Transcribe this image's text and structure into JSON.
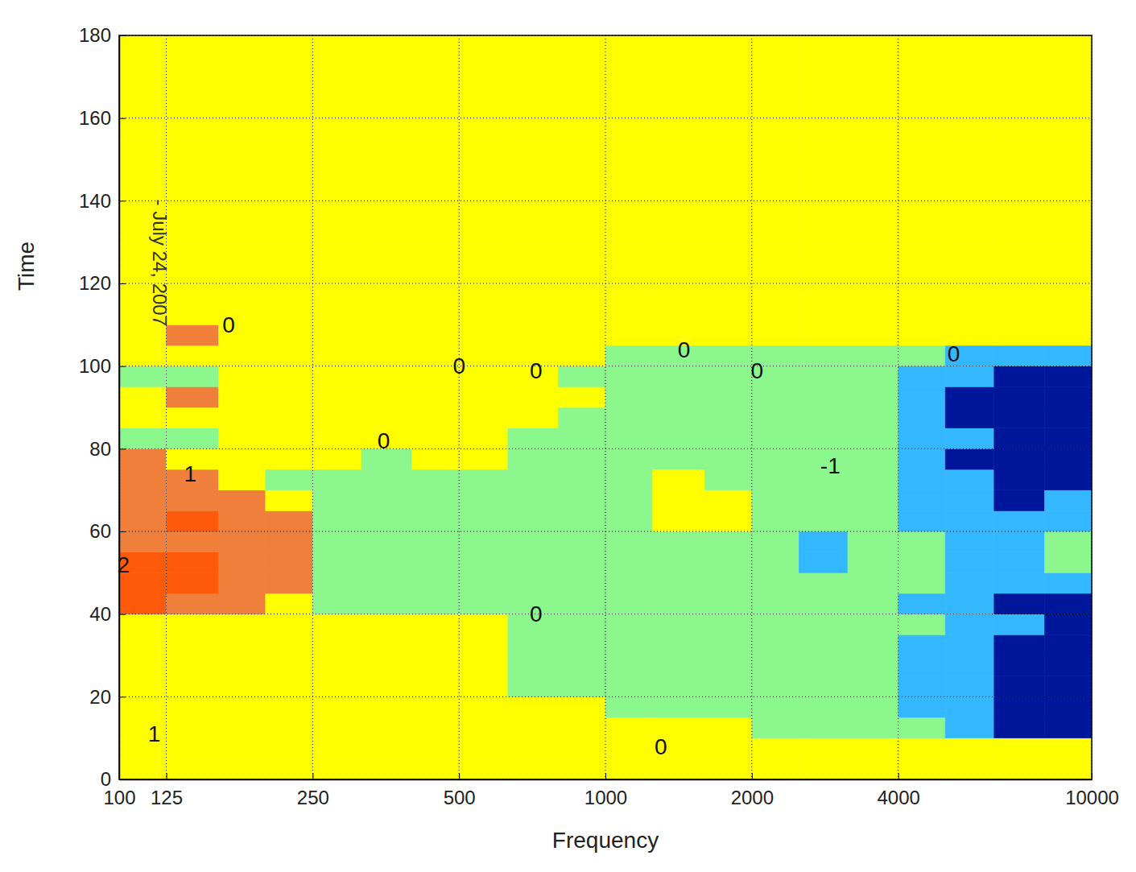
{
  "chart_data": {
    "type": "heatmap",
    "x_label": "Frequency",
    "y_label": "Time",
    "log": "x",
    "grid": true,
    "xlim": [
      100,
      10000
    ],
    "ylim": [
      0,
      180
    ],
    "xticks": [
      100,
      125,
      250,
      500,
      1000,
      2000,
      4000,
      10000
    ],
    "yticks": [
      0,
      20,
      40,
      60,
      80,
      100,
      120,
      140,
      160,
      180
    ],
    "x_bins": [
      100,
      125,
      160,
      200,
      250,
      315,
      400,
      500,
      630,
      800,
      1000,
      1250,
      1600,
      2000,
      2500,
      3150,
      4000,
      5000,
      6300,
      8000,
      10000
    ],
    "y_bins": [
      0,
      5,
      10,
      15,
      20,
      25,
      30,
      35,
      40,
      45,
      50,
      55,
      60,
      65,
      70,
      75,
      80,
      85,
      90,
      95,
      100,
      105,
      110,
      115,
      120,
      125,
      130,
      135,
      140,
      145,
      150,
      155,
      160,
      165,
      170,
      175,
      180
    ],
    "zlim": [
      -3,
      2
    ],
    "z": [
      [
        0,
        0,
        0,
        0,
        0,
        0,
        0,
        0,
        0,
        0,
        0,
        0,
        0,
        0,
        0,
        0,
        0,
        0,
        0,
        0
      ],
      [
        0,
        0,
        0,
        0,
        0,
        0,
        0,
        0,
        0,
        0,
        0,
        0,
        0,
        0,
        0,
        0,
        0,
        0,
        0,
        0
      ],
      [
        0,
        0,
        0,
        0,
        0,
        0,
        0,
        0,
        0,
        0,
        0,
        0,
        0,
        -1,
        -1,
        -1,
        -1,
        -2,
        -3,
        -3
      ],
      [
        0,
        0,
        0,
        0,
        0,
        0,
        0,
        0,
        0,
        0,
        -1,
        -1,
        -1,
        -1,
        -1,
        -1,
        -2,
        -2,
        -3,
        -3
      ],
      [
        0,
        0,
        0,
        0,
        0,
        0,
        0,
        0,
        -1,
        -1,
        -1,
        -1,
        -1,
        -1,
        -1,
        -1,
        -2,
        -2,
        -3,
        -3
      ],
      [
        0,
        0,
        0,
        0,
        0,
        0,
        0,
        0,
        -1,
        -1,
        -1,
        -1,
        -1,
        -1,
        -1,
        -1,
        -2,
        -2,
        -3,
        -3
      ],
      [
        0,
        0,
        0,
        0,
        0,
        0,
        0,
        0,
        -1,
        -1,
        -1,
        -1,
        -1,
        -1,
        -1,
        -1,
        -2,
        -2,
        -3,
        -3
      ],
      [
        0,
        0,
        0,
        0,
        0,
        0,
        0,
        0,
        -1,
        -1,
        -1,
        -1,
        -1,
        -1,
        -1,
        -1,
        -1,
        -2,
        -2,
        -3
      ],
      [
        2,
        1,
        1,
        0,
        -1,
        -1,
        -1,
        -1,
        -1,
        -1,
        -1,
        -1,
        -1,
        -1,
        -1,
        -1,
        -2,
        -2,
        -3,
        -3
      ],
      [
        2,
        2,
        1,
        1,
        -1,
        -1,
        -1,
        -1,
        -1,
        -1,
        -1,
        -1,
        -1,
        -1,
        -1,
        -1,
        -1,
        -2,
        -2,
        -2
      ],
      [
        2,
        2,
        1,
        1,
        -1,
        -1,
        -1,
        -1,
        -1,
        -1,
        -1,
        -1,
        -1,
        -1,
        -2,
        -1,
        -1,
        -2,
        -2,
        -1
      ],
      [
        1,
        1,
        1,
        1,
        -1,
        -1,
        -1,
        -1,
        -1,
        -1,
        -1,
        -1,
        -1,
        -1,
        -2,
        -1,
        -1,
        -2,
        -2,
        -1
      ],
      [
        1,
        2,
        1,
        1,
        -1,
        -1,
        -1,
        -1,
        -1,
        -1,
        -1,
        0,
        0,
        -1,
        -1,
        -1,
        -2,
        -2,
        -2,
        -2
      ],
      [
        1,
        1,
        1,
        0,
        -1,
        -1,
        -1,
        -1,
        -1,
        -1,
        -1,
        0,
        0,
        -1,
        -1,
        -1,
        -2,
        -2,
        -3,
        -2
      ],
      [
        1,
        1,
        0,
        -1,
        -1,
        -1,
        -1,
        -1,
        -1,
        -1,
        -1,
        0,
        -1,
        -1,
        -1,
        -1,
        -2,
        -2,
        -3,
        -3
      ],
      [
        1,
        0,
        0,
        0,
        0,
        -1,
        0,
        0,
        -1,
        -1,
        -1,
        -1,
        -1,
        -1,
        -1,
        -1,
        -2,
        -3,
        -3,
        -3
      ],
      [
        -1,
        -1,
        0,
        0,
        0,
        0,
        0,
        0,
        -1,
        -1,
        -1,
        -1,
        -1,
        -1,
        -1,
        -1,
        -2,
        -2,
        -3,
        -3
      ],
      [
        0,
        0,
        0,
        0,
        0,
        0,
        0,
        0,
        0,
        -1,
        -1,
        -1,
        -1,
        -1,
        -1,
        -1,
        -2,
        -3,
        -3,
        -3
      ],
      [
        0,
        1,
        0,
        0,
        0,
        0,
        0,
        0,
        0,
        0,
        -1,
        -1,
        -1,
        -1,
        -1,
        -1,
        -2,
        -3,
        -3,
        -3
      ],
      [
        -1,
        -1,
        0,
        0,
        0,
        0,
        0,
        0,
        0,
        -1,
        -1,
        -1,
        -1,
        -1,
        -1,
        -1,
        -2,
        -2,
        -3,
        -3
      ],
      [
        0,
        0,
        0,
        0,
        0,
        0,
        0,
        0,
        0,
        0,
        -1,
        -1,
        -1,
        -1,
        -1,
        -1,
        -1,
        -2,
        -2,
        -2
      ],
      [
        0,
        1,
        0,
        0,
        0,
        0,
        0,
        0,
        0,
        0,
        0,
        0,
        0,
        0,
        0,
        0,
        0,
        0,
        0,
        0
      ],
      [
        0,
        0,
        0,
        0,
        0,
        0,
        0,
        0,
        0,
        0,
        0,
        0,
        0,
        0,
        0,
        0,
        0,
        0,
        0,
        0
      ],
      [
        0,
        0,
        0,
        0,
        0,
        0,
        0,
        0,
        0,
        0,
        0,
        0,
        0,
        0,
        0,
        0,
        0,
        0,
        0,
        0
      ],
      [
        0,
        0,
        0,
        0,
        0,
        0,
        0,
        0,
        0,
        0,
        0,
        0,
        0,
        0,
        0,
        0,
        0,
        0,
        0,
        0
      ],
      [
        0,
        0,
        0,
        0,
        0,
        0,
        0,
        0,
        0,
        0,
        0,
        0,
        0,
        0,
        0,
        0,
        0,
        0,
        0,
        0
      ],
      [
        0,
        0,
        0,
        0,
        0,
        0,
        0,
        0,
        0,
        0,
        0,
        0,
        0,
        0,
        0,
        0,
        0,
        0,
        0,
        0
      ],
      [
        0,
        0,
        0,
        0,
        0,
        0,
        0,
        0,
        0,
        0,
        0,
        0,
        0,
        0,
        0,
        0,
        0,
        0,
        0,
        0
      ],
      [
        0,
        0,
        0,
        0,
        0,
        0,
        0,
        0,
        0,
        0,
        0,
        0,
        0,
        0,
        0,
        0,
        0,
        0,
        0,
        0
      ],
      [
        0,
        0,
        0,
        0,
        0,
        0,
        0,
        0,
        0,
        0,
        0,
        0,
        0,
        0,
        0,
        0,
        0,
        0,
        0,
        0
      ],
      [
        0,
        0,
        0,
        0,
        0,
        0,
        0,
        0,
        0,
        0,
        0,
        0,
        0,
        0,
        0,
        0,
        0,
        0,
        0,
        0
      ],
      [
        0,
        0,
        0,
        0,
        0,
        0,
        0,
        0,
        0,
        0,
        0,
        0,
        0,
        0,
        0,
        0,
        0,
        0,
        0,
        0
      ],
      [
        0,
        0,
        0,
        0,
        0,
        0,
        0,
        0,
        0,
        0,
        0,
        0,
        0,
        0,
        0,
        0,
        0,
        0,
        0,
        0
      ],
      [
        0,
        0,
        0,
        0,
        0,
        0,
        0,
        0,
        0,
        0,
        0,
        0,
        0,
        0,
        0,
        0,
        0,
        0,
        0,
        0
      ],
      [
        0,
        0,
        0,
        0,
        0,
        0,
        0,
        0,
        0,
        0,
        0,
        0,
        0,
        0,
        0,
        0,
        0,
        0,
        0,
        0
      ],
      [
        0,
        0,
        0,
        0,
        0,
        0,
        0,
        0,
        0,
        0,
        0,
        0,
        0,
        0,
        0,
        0,
        0,
        0,
        0,
        0
      ]
    ],
    "annotations": [
      {
        "text": "- July 24, 2007",
        "x": 121,
        "y": 125
      },
      {
        "text": "0",
        "x": 168,
        "y": 110
      },
      {
        "text": "0",
        "x": 500,
        "y": 100
      },
      {
        "text": "0",
        "x": 720,
        "y": 99
      },
      {
        "text": "0",
        "x": 1450,
        "y": 104
      },
      {
        "text": "0",
        "x": 2050,
        "y": 99
      },
      {
        "text": "0",
        "x": 5200,
        "y": 103
      },
      {
        "text": "0",
        "x": 1300,
        "y": 8
      },
      {
        "text": "0",
        "x": 720,
        "y": 40
      },
      {
        "text": "0",
        "x": 350,
        "y": 82
      },
      {
        "text": "1",
        "x": 140,
        "y": 74
      },
      {
        "text": "2",
        "x": 102,
        "y": 52
      },
      {
        "text": "1",
        "x": 118,
        "y": 11
      },
      {
        "text": "-1",
        "x": 2900,
        "y": 76
      }
    ]
  }
}
